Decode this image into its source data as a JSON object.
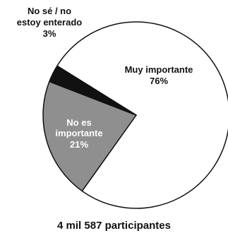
{
  "chart_data": {
    "type": "pie",
    "slices": [
      {
        "label": "Muy importante",
        "value_label": "76%",
        "value": 76,
        "color": "#ffffff",
        "text_color": "#111111"
      },
      {
        "label": "No es importante",
        "value_label": "21%",
        "value": 21,
        "color": "#8f8f8f",
        "text_color": "#ffffff"
      },
      {
        "label": "No sé / no estoy enterado",
        "value_label": "3%",
        "value": 3,
        "color": "#111111",
        "text_color": "#111111"
      }
    ],
    "footer": "4 mil 587 participantes"
  }
}
